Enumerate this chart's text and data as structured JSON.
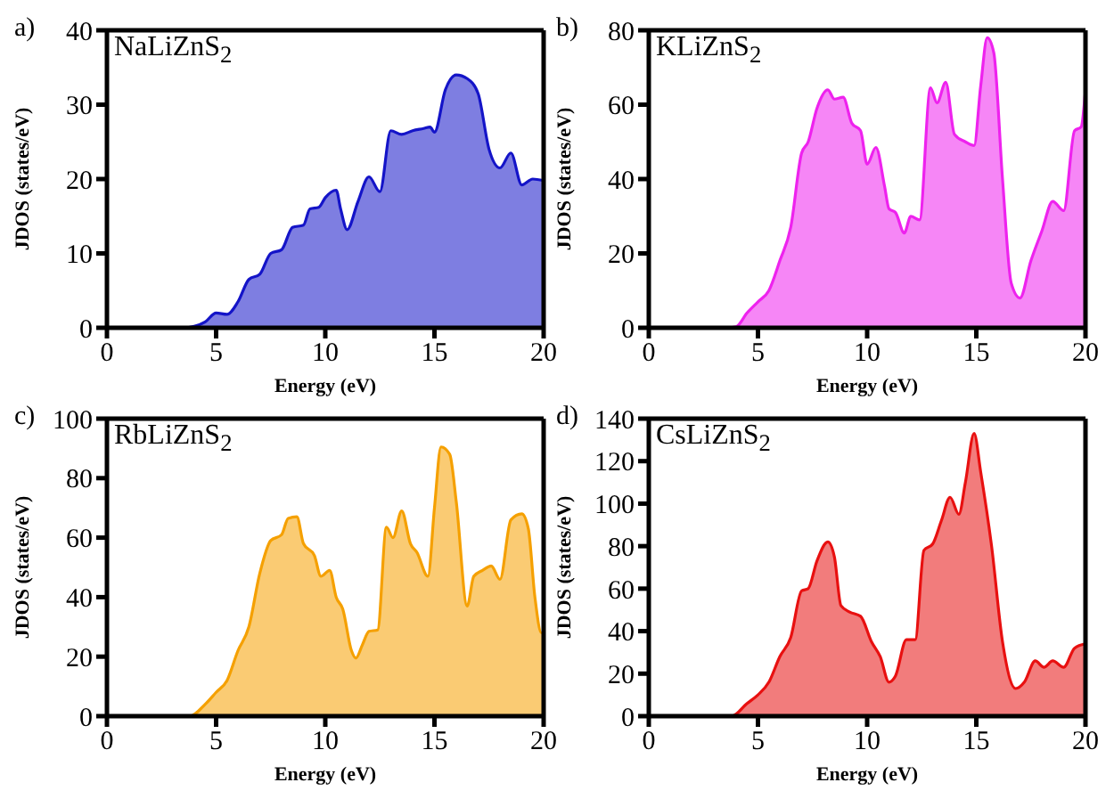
{
  "chart_data": [
    {
      "type": "area",
      "title": "a)",
      "xlabel": "Energy (eV)",
      "ylabel": "JDOS (states/eV)",
      "annotations": [
        "NaLiZnS$_{2}$"
      ],
      "xlim": [
        0,
        20
      ],
      "xticks": [
        0,
        5,
        10,
        15,
        20
      ],
      "ylim": [
        0,
        40
      ],
      "yticks": [
        0,
        10,
        20,
        30,
        40
      ],
      "x": [
        0,
        3.5,
        4,
        4.5,
        5,
        5.5,
        6,
        6.5,
        7,
        7.5,
        8,
        8.5,
        9,
        9.3,
        9.7,
        10,
        10.5,
        10.7,
        11,
        11.5,
        12,
        12.5,
        13,
        13.5,
        14,
        14.5,
        14.8,
        15,
        15.5,
        16,
        16.5,
        17,
        17.5,
        18,
        18.5,
        19,
        19.5,
        20
      ],
      "series": [
        {
          "color": "#1414c8",
          "values": [
            0,
            0,
            0.2,
            0.8,
            2,
            1.8,
            3.5,
            6.5,
            7.2,
            10,
            10.5,
            13.5,
            13.8,
            16,
            16.2,
            17.5,
            18.5,
            16,
            13.2,
            17,
            20.3,
            18.3,
            26.5,
            26,
            26.5,
            26.8,
            27,
            26.3,
            32,
            34,
            33.5,
            31.5,
            24,
            21.5,
            23.5,
            19.2,
            20,
            19.8
          ]
        }
      ]
    },
    {
      "type": "area",
      "title": "b)",
      "xlabel": "Energy (eV)",
      "ylabel": "JDOS (states/eV)",
      "annotations": [
        "KLiZnS$_{2}$"
      ],
      "xlim": [
        0,
        20
      ],
      "xticks": [
        0,
        5,
        10,
        15,
        20
      ],
      "ylim": [
        0,
        80
      ],
      "yticks": [
        0,
        20,
        40,
        60,
        80
      ],
      "x": [
        0,
        3.5,
        4,
        4.5,
        5,
        5.5,
        6,
        6.5,
        7,
        7.3,
        7.7,
        8.2,
        8.5,
        8.9,
        9.3,
        9.7,
        10,
        10.4,
        10.8,
        11,
        11.3,
        11.7,
        12,
        12.4,
        12.9,
        13.2,
        13.6,
        14,
        14.5,
        14.9,
        15.2,
        15.5,
        15.8,
        16.2,
        16.6,
        17,
        17.5,
        18,
        18.5,
        19,
        19.5,
        19.8,
        20
      ],
      "series": [
        {
          "color": "#ee22ee",
          "values": [
            0,
            0,
            0.3,
            4,
            7,
            10,
            18,
            27,
            47,
            50,
            59,
            64,
            61.5,
            62,
            55,
            53,
            44,
            48.5,
            38,
            32,
            31,
            25.5,
            30,
            29,
            64.5,
            60.5,
            66,
            52,
            50,
            49,
            65,
            78,
            74,
            40,
            12,
            8,
            18,
            26,
            34,
            31.5,
            53,
            54,
            64
          ]
        }
      ]
    },
    {
      "type": "area",
      "title": "c)",
      "xlabel": "Energy (eV)",
      "ylabel": "JDOS (states/eV)",
      "annotations": [
        "RbLiZnS$_{2}$"
      ],
      "xlim": [
        0,
        20
      ],
      "xticks": [
        0,
        5,
        10,
        15,
        20
      ],
      "ylim": [
        0,
        100
      ],
      "yticks": [
        0,
        20,
        40,
        60,
        80,
        100
      ],
      "x": [
        0,
        3.8,
        4.5,
        5,
        5.5,
        6,
        6.5,
        7,
        7.5,
        8,
        8.3,
        8.7,
        9,
        9.5,
        9.8,
        10.2,
        10.5,
        10.8,
        11.2,
        11.4,
        11.7,
        12,
        12.4,
        12.8,
        13.1,
        13.5,
        13.9,
        14.2,
        14.7,
        15,
        15.3,
        15.7,
        16,
        16.5,
        16.8,
        17.2,
        17.6,
        18,
        18.5,
        19,
        19.3,
        19.6,
        19.9,
        20
      ],
      "series": [
        {
          "color": "#f5a000",
          "values": [
            0,
            0,
            4,
            8,
            12,
            22,
            30,
            48,
            59,
            61,
            66.5,
            67,
            58,
            54,
            47,
            49,
            40,
            36,
            22,
            19.5,
            24,
            28.5,
            29,
            63.5,
            60,
            69,
            58,
            55,
            47,
            70,
            90.5,
            88,
            72,
            37,
            47,
            49,
            50.5,
            46,
            66,
            68,
            63,
            40,
            28,
            28
          ]
        }
      ]
    },
    {
      "type": "area",
      "title": "d)",
      "xlabel": "Energy (eV)",
      "ylabel": "JDOS (states/eV)",
      "annotations": [
        "CsLiZnS$_{2}$"
      ],
      "xlim": [
        0,
        20
      ],
      "xticks": [
        0,
        5,
        10,
        15,
        20
      ],
      "ylim": [
        0,
        140
      ],
      "yticks": [
        0,
        20,
        40,
        60,
        80,
        100,
        120,
        140
      ],
      "x": [
        0,
        3.8,
        4.5,
        5,
        5.5,
        6,
        6.5,
        7,
        7.3,
        7.7,
        8.2,
        8.5,
        8.8,
        9.2,
        9.7,
        10.2,
        10.6,
        11,
        11.3,
        11.8,
        12.2,
        12.6,
        13,
        13.4,
        13.8,
        14.2,
        14.5,
        14.9,
        15.2,
        15.7,
        16.2,
        16.8,
        17.2,
        17.7,
        18.1,
        18.5,
        19,
        19.5,
        20
      ],
      "series": [
        {
          "color": "#e81010",
          "values": [
            0,
            0,
            6,
            10,
            16,
            28,
            37,
            59,
            60,
            73,
            82,
            75,
            52,
            49,
            47,
            35,
            28,
            16,
            19,
            36,
            36,
            78,
            81,
            92,
            103,
            95,
            110,
            133,
            115,
            80,
            35,
            13,
            16,
            26,
            23,
            26,
            23,
            32,
            34
          ]
        }
      ]
    }
  ]
}
